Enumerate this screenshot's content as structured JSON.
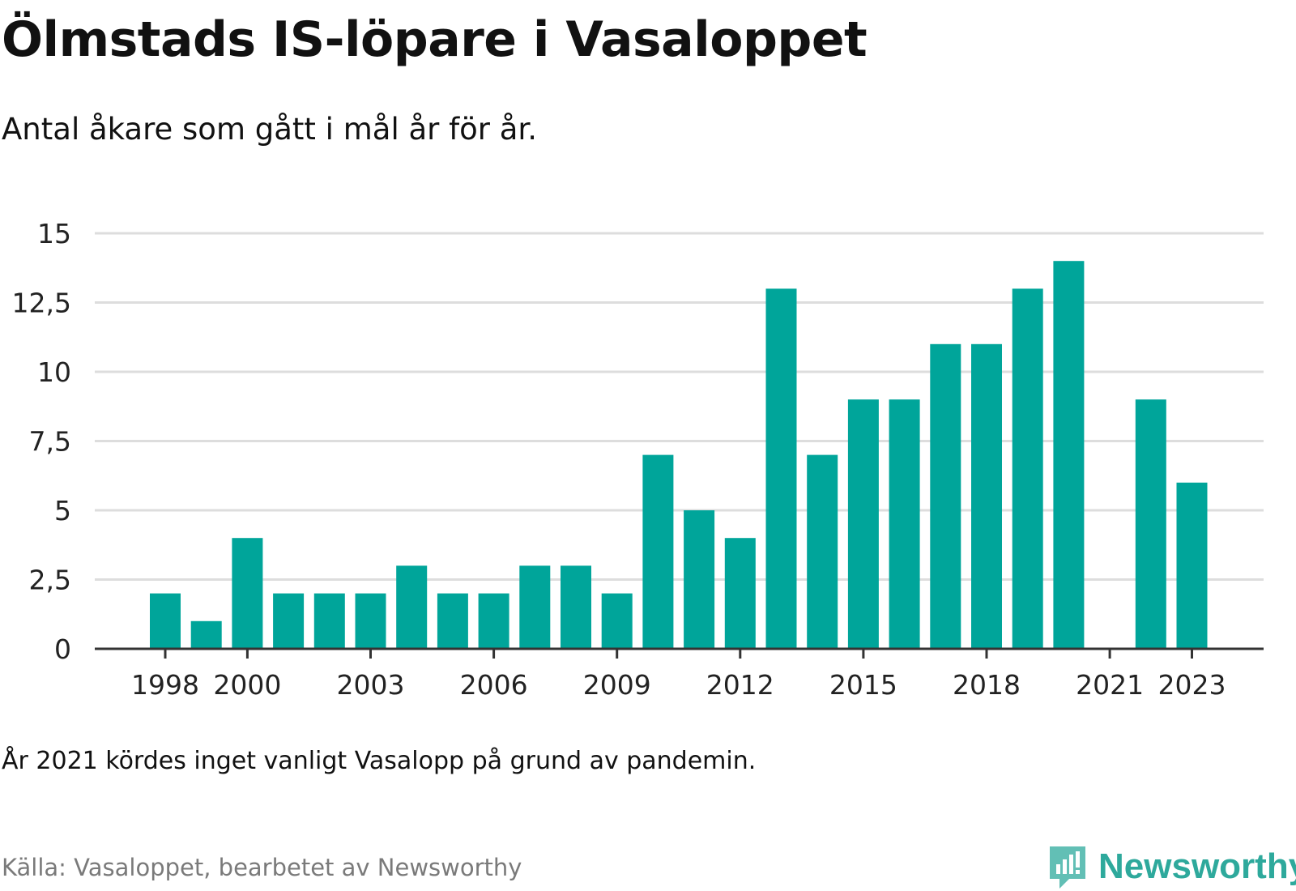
{
  "title": "Ölmstads IS-löpare i Vasaloppet",
  "subtitle": "Antal åkare som gått i mål år för år.",
  "note": "År 2021 kördes inget vanligt Vasalopp på grund av pandemin.",
  "source": "Källa: Vasaloppet, bearbetet av Newsworthy",
  "brand": {
    "name": "Newsworthy",
    "icon": "newsworthy-logo-icon",
    "color": "#2ea99c"
  },
  "colors": {
    "bar": "#00a59a",
    "grid": "#dddddd",
    "axis": "#333333"
  },
  "chart_data": {
    "type": "bar",
    "categories": [
      "1998",
      "1999",
      "2000",
      "2001",
      "2002",
      "2003",
      "2004",
      "2005",
      "2006",
      "2007",
      "2008",
      "2009",
      "2010",
      "2011",
      "2012",
      "2013",
      "2014",
      "2015",
      "2016",
      "2017",
      "2018",
      "2019",
      "2020",
      "2021",
      "2022",
      "2023"
    ],
    "values": [
      2,
      1,
      4,
      2,
      2,
      2,
      3,
      2,
      2,
      3,
      3,
      2,
      7,
      5,
      4,
      13,
      7,
      9,
      9,
      11,
      11,
      13,
      14,
      0,
      9,
      6
    ],
    "ylim": [
      0,
      15
    ],
    "yticks": [
      0,
      2.5,
      5,
      7.5,
      10,
      12.5,
      15
    ],
    "ytick_labels": [
      "0",
      "2,5",
      "5",
      "7,5",
      "10",
      "12,5",
      "15"
    ],
    "xtick_labels": [
      "1998",
      "2000",
      "2003",
      "2006",
      "2009",
      "2012",
      "2015",
      "2018",
      "2021",
      "2023"
    ],
    "grid": true,
    "legend": "none"
  }
}
